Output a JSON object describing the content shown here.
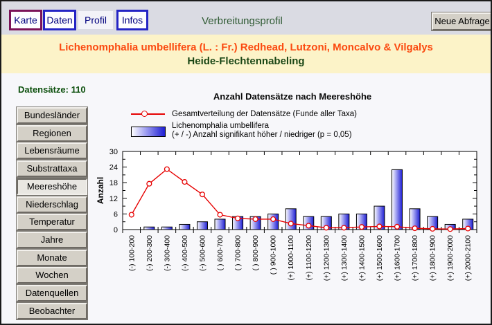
{
  "header": {
    "nav": [
      {
        "label": "Karte"
      },
      {
        "label": "Daten"
      },
      {
        "label": "Profil"
      },
      {
        "label": "Infos"
      }
    ],
    "active_nav": "Profil",
    "title": "Verbreitungsprofil",
    "new_query_label": "Neue Abfrage",
    "colors": {
      "karte_border": "#7b1258",
      "daten_border": "#2424c4",
      "infos_border": "#2424c4",
      "bar_background": "#dadbe3"
    }
  },
  "banner": {
    "species": "Lichenomphalia umbellifera (L. : Fr.) Redhead, Lutzoni, Moncalvo & Vilgalys",
    "common_name": "Heide-Flechtennabeling",
    "colors": {
      "species": "#fb4a10",
      "common_name": "#1b4716",
      "background": "#fcf3c8"
    }
  },
  "sidebar": {
    "records_label": "Datensätze: 110",
    "buttons": [
      "Bundesländer",
      "Regionen",
      "Lebensräume",
      "Substrattaxa",
      "Meereshöhe",
      "Niederschlag",
      "Temperatur",
      "Jahre",
      "Monate",
      "Wochen",
      "Datenquellen",
      "Beobachter"
    ],
    "selected": "Meereshöhe"
  },
  "chart_data": {
    "type": "bar",
    "title": "Anzahl Datensätze nach Meereshöhe",
    "ylabel": "Anzahl",
    "xlabel": "",
    "ylim": [
      0,
      30
    ],
    "yticks": [
      0,
      6,
      12,
      18,
      24,
      30
    ],
    "grid": false,
    "legend_position": "top-left",
    "categories": [
      "(-) 100-200",
      "(-) 200-300",
      "(-) 300-400",
      "(-) 400-500",
      "(-) 500-600",
      "( ) 600-700",
      "( ) 700-800",
      "( ) 800-900",
      "( ) 900-1000",
      "(+) 1000-1100",
      "(+) 1100-1200",
      "(+) 1200-1300",
      "(+) 1300-1400",
      "(+) 1400-1500",
      "(+) 1500-1600",
      "(+) 1600-1700",
      "(+) 1700-1800",
      "(+) 1800-1900",
      "(+) 1900-2000",
      "(+) 2000-2100"
    ],
    "series": [
      {
        "name": "Gesamtverteilung der Datensätze (Funde aller Taxa)",
        "type": "line",
        "color": "#e60000",
        "values": [
          5.7,
          17.6,
          23.2,
          18.3,
          13.5,
          5.7,
          4.3,
          4.0,
          4.0,
          2.3,
          1.5,
          0.7,
          0.7,
          1.0,
          1.2,
          1.1,
          0.5,
          0.3,
          0.2,
          0.4
        ]
      },
      {
        "name": "Lichenomphalia umbellifera (+ / -) Anzahl signifikant höher / niedriger (p = 0,05)",
        "type": "bar",
        "color": "#1d1dd2",
        "values": [
          0,
          1,
          1,
          2,
          3,
          4,
          5,
          5,
          6,
          8,
          5,
          5,
          6,
          6,
          9,
          23,
          8,
          5,
          2,
          4
        ]
      }
    ],
    "legend": {
      "line_label": "Gesamtverteilung der Datensätze (Funde aller Taxa)",
      "bar_label_line1": "Lichenomphalia umbellifera",
      "bar_label_line2": "(+ / -) Anzahl signifikant höher / niedriger (p = 0,05)"
    }
  }
}
